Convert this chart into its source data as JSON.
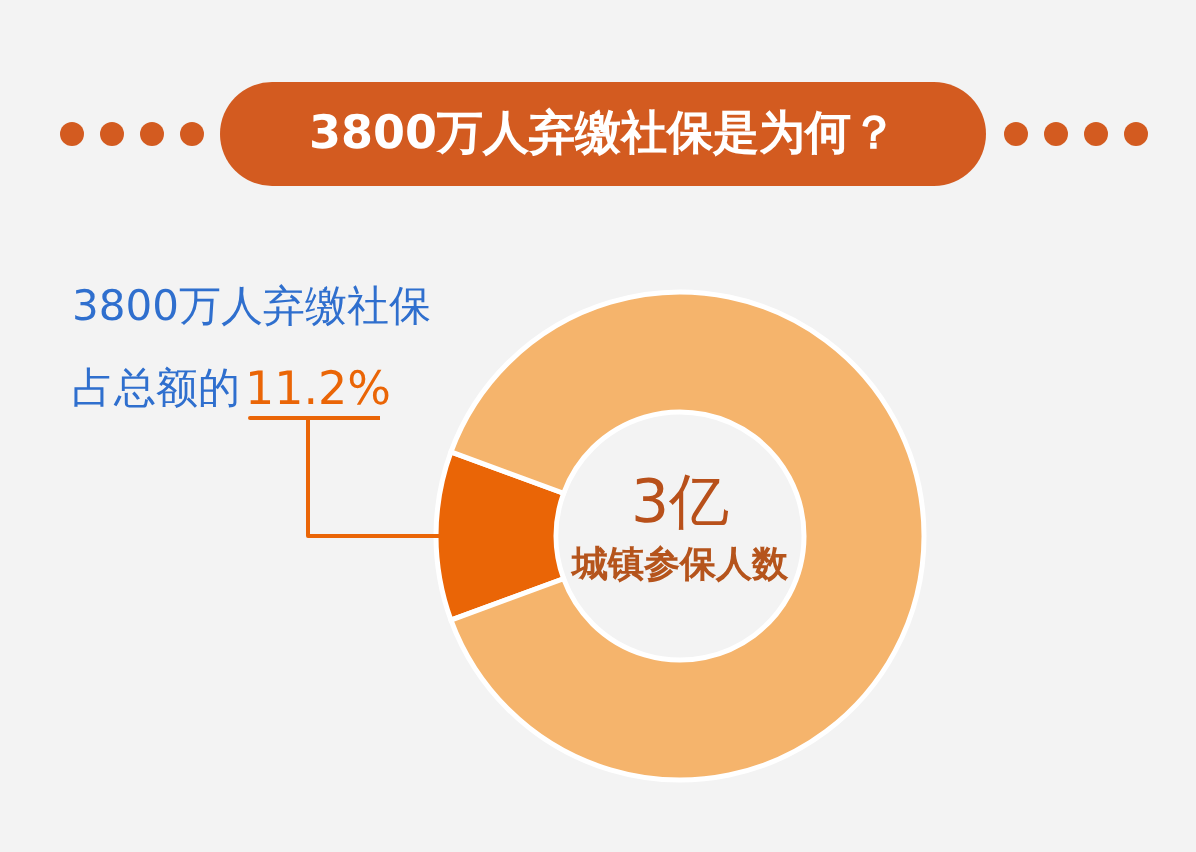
{
  "chart_data": {
    "type": "donut",
    "title": "3800万人弃缴社保是为何？",
    "categories": [
      null,
      null
    ],
    "values": [
      11.2,
      88.8
    ],
    "colors": [
      "#ea6506",
      "#f5b46c"
    ],
    "value_labels": [
      "11.2%",
      null
    ],
    "annotations": [
      "3800万人弃缴社保",
      "占总额的",
      "3亿",
      "城镇参保人数"
    ]
  }
}
